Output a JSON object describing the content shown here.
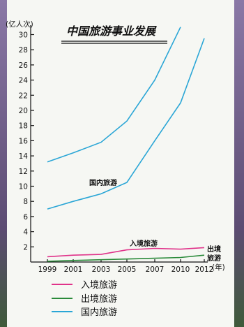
{
  "chart_data": {
    "type": "line",
    "title": "中国旅游事业发展",
    "y_unit": "(亿人次)",
    "x_unit": "(年)",
    "x": [
      "1999",
      "2001",
      "2003",
      "2005",
      "2007",
      "2010",
      "2012"
    ],
    "ylim": [
      0,
      30
    ],
    "yticks": [
      2,
      4,
      6,
      8,
      10,
      12,
      14,
      16,
      18,
      20,
      22,
      24,
      26,
      28,
      30
    ],
    "series": [
      {
        "name": "入境旅游",
        "color": "#e0338a",
        "values": [
          0.7,
          0.9,
          1.0,
          1.6,
          1.8,
          1.7,
          1.9
        ]
      },
      {
        "name": "出境旅游",
        "color": "#2a8a3a",
        "values": [
          0.1,
          0.2,
          0.3,
          0.4,
          0.5,
          0.6,
          0.9
        ]
      },
      {
        "name": "国内旅游",
        "color": "#2aa6d6",
        "values": [
          7.0,
          8.0,
          9.0,
          10.5,
          16.0,
          21.0,
          29.5
        ]
      }
    ],
    "upper_band": {
      "color": "#2aa6d6",
      "values": [
        13.2,
        14.4,
        15.8,
        18.6,
        24.0,
        31.0
      ]
    },
    "annotations": [
      {
        "text": "国内旅游"
      },
      {
        "text": "入境旅游"
      },
      {
        "text": "出境"
      },
      {
        "text": "旅游"
      }
    ]
  }
}
